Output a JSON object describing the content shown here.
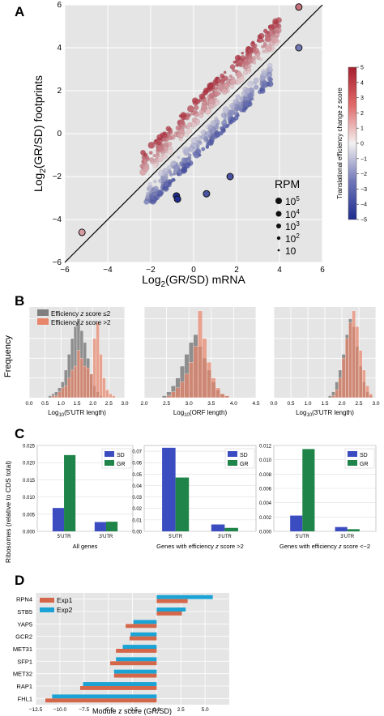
{
  "figure": {
    "panel_labels": [
      "A",
      "B",
      "C",
      "D"
    ]
  },
  "colors": {
    "plot_bg": "#e5e5e5",
    "grid": "#ffffff",
    "red": "#d9534f",
    "blue": "#4a55a8",
    "gray_hist": "#7f7f7f",
    "orange_hist": "#e8866b",
    "sd_bar": "#3b4cc0",
    "gr_bar": "#1e8449",
    "exp1": "#d4674a",
    "exp2": "#1aa3d4"
  },
  "chart_data": [
    {
      "panel": "A",
      "type": "scatter",
      "xlabel_parts": [
        "Log",
        "2",
        "(GR/SD) mRNA"
      ],
      "ylabel_parts": [
        "Log",
        "2",
        "(GR/SD) footprints"
      ],
      "xlim": [
        -6,
        6
      ],
      "ylim": [
        -6,
        6
      ],
      "xticks": [
        -6,
        -4,
        -2,
        0,
        2,
        4,
        6
      ],
      "yticks": [
        -6,
        -4,
        -2,
        0,
        2,
        4,
        6
      ],
      "tick_labels": [
        "−6",
        "−4",
        "−2",
        "0",
        "2",
        "4",
        "6"
      ],
      "diagonal": true,
      "grid": true,
      "colorbar": {
        "label_parts": [
          "Translational efficiency change ",
          "z",
          " score"
        ],
        "range": [
          -5,
          5
        ],
        "ticks": [
          "5",
          "4",
          "3",
          "2",
          "1",
          "0",
          "−1",
          "−2",
          "−3",
          "−4",
          "−5"
        ],
        "colors": [
          "#a61e2e",
          "#ffffff",
          "#1f2c8f"
        ]
      },
      "size_legend": {
        "title": "RPM",
        "entries": [
          "10",
          "5",
          "10",
          "4",
          "10",
          "3",
          "10",
          "2",
          "10",
          ""
        ]
      },
      "groups": [
        {
          "name": "up",
          "center_slope": 1.0,
          "offset": 0.9,
          "x_range": [
            -2.4,
            4.0
          ],
          "spread": 0.75,
          "n": 320,
          "color": "#d9534f"
        },
        {
          "name": "down",
          "center_slope": 1.0,
          "offset": -0.8,
          "x_range": [
            -2.2,
            3.6
          ],
          "spread": 0.6,
          "n": 260,
          "color": "#4a55a8"
        }
      ],
      "points_highlighted": [
        {
          "x": -0.8,
          "y": -2.9,
          "z": -5
        },
        {
          "x": -0.75,
          "y": -3.05,
          "z": -5
        },
        {
          "x": 4.9,
          "y": 5.9,
          "z": 3
        },
        {
          "x": 4.9,
          "y": 4.0,
          "z": -3
        },
        {
          "x": -5.2,
          "y": -4.6,
          "z": 2
        },
        {
          "x": 1.7,
          "y": -2.0,
          "z": -4
        },
        {
          "x": 0.6,
          "y": -2.8,
          "z": -4
        }
      ]
    },
    {
      "panel": "B",
      "type": "bar",
      "ylabel": "Frequency",
      "legend": [
        "Efficiency ",
        "z",
        " score ≤2",
        "Efficiency ",
        "z",
        " score >2"
      ],
      "subplots": [
        {
          "xlabel_parts": [
            "Log",
            "10",
            "(5'UTR length)"
          ],
          "xlim": [
            0,
            3
          ],
          "xticks": [
            "0.0",
            "0.5",
            "1.0",
            "1.5",
            "2.0",
            "2.5",
            "3.0"
          ],
          "bin_start": 0.6,
          "bin_width": 0.1,
          "gray": [
            1,
            2,
            3,
            5,
            8,
            14,
            22,
            30,
            36,
            40,
            34,
            28,
            20,
            12,
            6,
            3,
            1,
            0,
            0,
            0,
            0,
            0,
            0
          ],
          "orange": [
            0,
            1,
            1,
            3,
            5,
            6,
            10,
            14,
            16,
            24,
            20,
            16,
            15,
            12,
            30,
            38,
            22,
            10,
            4,
            2,
            1,
            0,
            0
          ]
        },
        {
          "xlabel_parts": [
            "Log",
            "10",
            "(ORF length)"
          ],
          "xlim": [
            2.0,
            4.5
          ],
          "xticks": [
            "2.0",
            "2.5",
            "3.0",
            "3.5",
            "4.0",
            "4.5"
          ],
          "bin_start": 2.4,
          "bin_width": 0.1,
          "gray": [
            1,
            3,
            6,
            10,
            16,
            22,
            28,
            32,
            26,
            20,
            14,
            8,
            4,
            2,
            1
          ],
          "orange": [
            0,
            1,
            3,
            5,
            8,
            12,
            18,
            26,
            44,
            30,
            18,
            10,
            5,
            2,
            1
          ]
        },
        {
          "xlabel_parts": [
            "Log",
            "10",
            "(3'UTR length)"
          ],
          "xlim": [
            0,
            3
          ],
          "xticks": [
            "0.0",
            "0.5",
            "1.0",
            "1.5",
            "2.0",
            "2.5",
            "3.0"
          ],
          "bin_start": 1.6,
          "bin_width": 0.1,
          "gray": [
            1,
            3,
            8,
            14,
            22,
            32,
            40,
            36,
            26,
            16,
            8,
            3,
            1
          ],
          "orange": [
            0,
            1,
            4,
            10,
            20,
            30,
            38,
            44,
            36,
            24,
            14,
            6,
            2
          ]
        }
      ]
    },
    {
      "panel": "C",
      "type": "bar",
      "ylabel": "Ribosomes (relative to CDS total)",
      "categories": [
        "5'UTR",
        "3'UTR"
      ],
      "series_names": [
        "SD",
        "GR"
      ],
      "subplots": [
        {
          "caption_parts": [
            "All genes"
          ],
          "ylim": [
            0,
            0.025
          ],
          "yticks": [
            "0.000",
            "0.005",
            "0.010",
            "0.015",
            "0.020",
            "0.025"
          ],
          "sd": [
            0.0068,
            0.0027
          ],
          "gr": [
            0.0222,
            0.0028
          ]
        },
        {
          "caption_parts": [
            "Genes with efficiency ",
            "z",
            " score >2"
          ],
          "ylim": [
            0,
            0.075
          ],
          "yticks": [
            "0.00",
            "0.01",
            "0.02",
            "0.03",
            "0.04",
            "0.05",
            "0.06",
            "0.07"
          ],
          "sd": [
            0.073,
            0.006
          ],
          "gr": [
            0.047,
            0.003
          ]
        },
        {
          "caption_parts": [
            "Genes with efficiency ",
            "z",
            " score <−2"
          ],
          "ylim": [
            0,
            0.012
          ],
          "yticks": [
            "0.000",
            "0.002",
            "0.004",
            "0.006",
            "0.008",
            "0.010",
            "0.012"
          ],
          "sd": [
            0.0022,
            0.0006
          ],
          "gr": [
            0.0115,
            0.0003
          ]
        }
      ]
    },
    {
      "panel": "D",
      "type": "bar",
      "orientation": "horizontal",
      "xlabel": "Module z score (GR/SD)",
      "xlim": [
        -12.5,
        7.5
      ],
      "xticks": [
        "−12.5",
        "−10.0",
        "−7.5",
        "−5.0",
        "−2.5",
        "0.0",
        "2.5",
        "5.0"
      ],
      "categories": [
        "RPN4",
        "STB5",
        "YAP5",
        "GCR2",
        "MET31",
        "SFP1",
        "MET32",
        "RAP1",
        "FHL1"
      ],
      "series": [
        {
          "name": "Exp1",
          "values": [
            3.2,
            2.6,
            -3.2,
            -2.8,
            -4.2,
            -4.8,
            -4.4,
            -7.9,
            -11.5
          ]
        },
        {
          "name": "Exp2",
          "values": [
            5.8,
            3.0,
            -2.4,
            -2.7,
            -3.5,
            -4.2,
            -4.4,
            -7.6,
            -10.8
          ]
        }
      ]
    }
  ]
}
